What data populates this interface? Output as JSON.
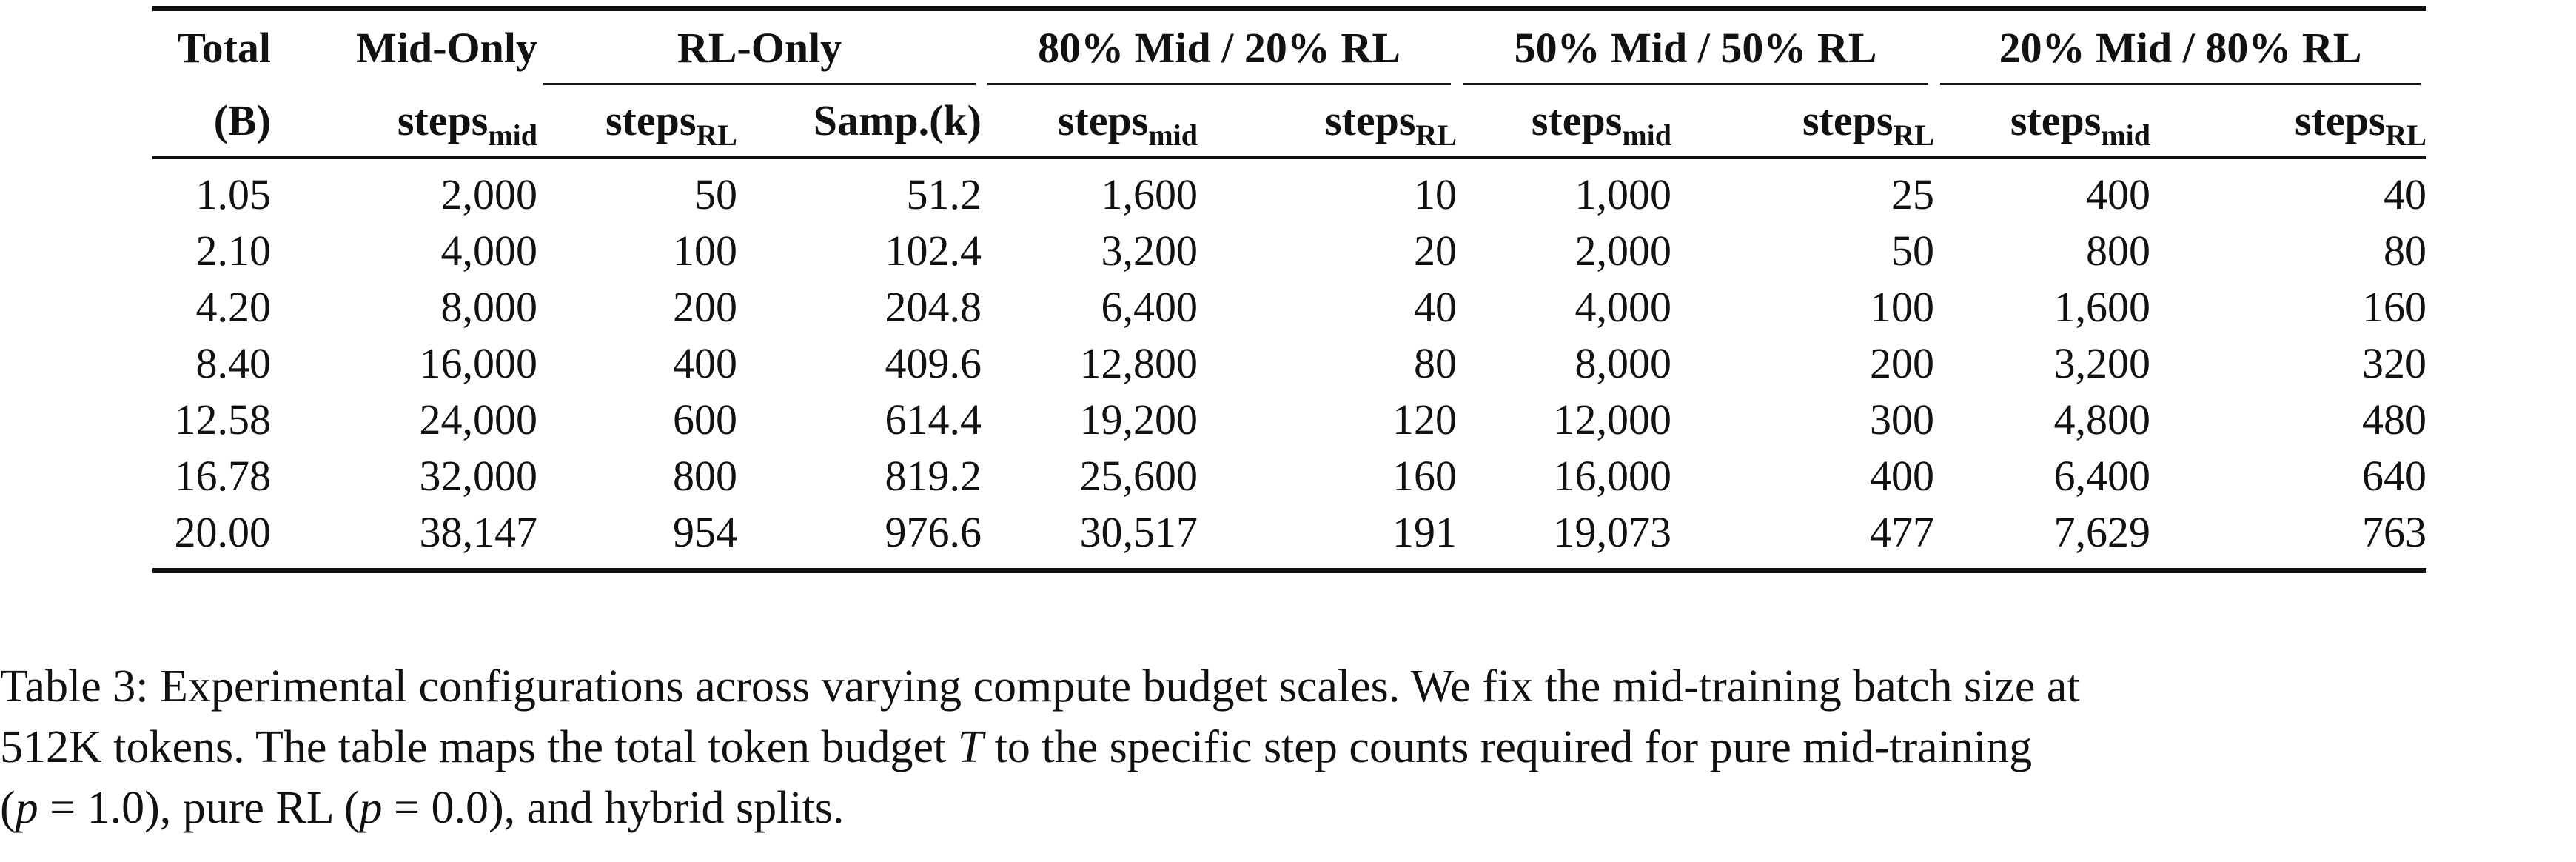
{
  "table": {
    "header_row1": {
      "total": "Total",
      "mid_only": "Mid-Only",
      "rl_only": "RL-Only",
      "split_80_20": "80% Mid / 20% RL",
      "split_50_50": "50% Mid / 50% RL",
      "split_20_80": "20% Mid / 80% RL"
    },
    "header_row2": {
      "total_unit": "(B)",
      "steps": "steps",
      "sub_mid": "mid",
      "sub_rl": "RL",
      "samp": "Samp.(k)"
    },
    "rows": [
      [
        "1.05",
        "2,000",
        "50",
        "51.2",
        "1,600",
        "10",
        "1,000",
        "25",
        "400",
        "40"
      ],
      [
        "2.10",
        "4,000",
        "100",
        "102.4",
        "3,200",
        "20",
        "2,000",
        "50",
        "800",
        "80"
      ],
      [
        "4.20",
        "8,000",
        "200",
        "204.8",
        "6,400",
        "40",
        "4,000",
        "100",
        "1,600",
        "160"
      ],
      [
        "8.40",
        "16,000",
        "400",
        "409.6",
        "12,800",
        "80",
        "8,000",
        "200",
        "3,200",
        "320"
      ],
      [
        "12.58",
        "24,000",
        "600",
        "614.4",
        "19,200",
        "120",
        "12,000",
        "300",
        "4,800",
        "480"
      ],
      [
        "16.78",
        "32,000",
        "800",
        "819.2",
        "25,600",
        "160",
        "16,000",
        "400",
        "6,400",
        "640"
      ],
      [
        "20.00",
        "38,147",
        "954",
        "976.6",
        "30,517",
        "191",
        "19,073",
        "477",
        "7,629",
        "763"
      ]
    ]
  },
  "caption": {
    "line1": "Table 3: Experimental configurations across varying compute budget scales. We fix the mid-training batch size at",
    "line2_a": "512K tokens. The table maps the total token budget ",
    "line2_math": "T",
    "line2_b": " to the specific step counts required for pure mid-training",
    "line3_a": "(",
    "line3_math1": "p",
    "line3_eq1": " = 1.0), pure RL (",
    "line3_math2": "p",
    "line3_eq2": " = 0.0), and hybrid splits."
  }
}
